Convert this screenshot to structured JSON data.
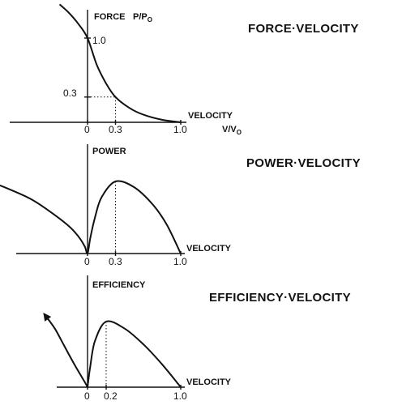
{
  "chart_data": [
    {
      "type": "line",
      "title": "FORCE·VELOCITY",
      "ylabel": "FORCE",
      "ylabel_unit": "P/P",
      "ylabel_unit_sub": "O",
      "xlabel": "VELOCITY",
      "xlabel_unit": "V/V",
      "xlabel_unit_sub": "O",
      "xlim": [
        -0.4,
        1.0
      ],
      "ylim": [
        0,
        1.4
      ],
      "x_ticks": [
        "0",
        "0.3",
        "1.0"
      ],
      "y_ticks": [
        "1.0",
        "0.3"
      ],
      "x_tick_values": [
        0,
        0.3,
        1.0
      ],
      "y_tick_values": [
        1.0,
        0.3
      ],
      "marked_point": {
        "x": 0.3,
        "y": 0.3
      },
      "series": [
        {
          "x": [
            -0.3,
            -0.2,
            -0.1,
            0.0,
            0.1,
            0.2,
            0.3,
            0.45,
            0.6,
            0.8,
            1.0
          ],
          "y": [
            1.4,
            1.3,
            1.17,
            1.0,
            0.68,
            0.46,
            0.3,
            0.17,
            0.09,
            0.03,
            0.0
          ]
        }
      ]
    },
    {
      "type": "line",
      "title": "POWER·VELOCITY",
      "ylabel": "POWER",
      "xlabel": "VELOCITY",
      "xlim": [
        -0.95,
        1.0
      ],
      "ylim": [
        0,
        1.0
      ],
      "x_ticks": [
        "0",
        "0.3",
        "1.0"
      ],
      "x_tick_values": [
        0,
        0.3,
        1.0
      ],
      "peak_x": 0.3,
      "series": [
        {
          "x": [
            -0.95,
            -0.8,
            -0.6,
            -0.4,
            -0.2,
            -0.1,
            -0.03,
            0.0,
            0.03,
            0.08,
            0.15,
            0.3,
            0.5,
            0.7,
            0.85,
            1.0
          ],
          "y": [
            0.95,
            0.87,
            0.75,
            0.58,
            0.38,
            0.24,
            0.1,
            0.0,
            0.22,
            0.5,
            0.78,
            1.0,
            0.92,
            0.68,
            0.4,
            0.0
          ]
        }
      ]
    },
    {
      "type": "line",
      "title": "EFFICIENCY·VELOCITY",
      "ylabel": "EFFICIENCY",
      "xlabel": "VELOCITY",
      "xlim": [
        -0.95,
        1.0
      ],
      "ylim": [
        0,
        1.0
      ],
      "x_ticks": [
        "0",
        "0.2",
        "1.0"
      ],
      "x_tick_values": [
        0,
        0.2,
        1.0
      ],
      "peak_x": 0.2,
      "series": [
        {
          "x": [
            -0.45,
            -0.35,
            -0.25,
            -0.15,
            -0.07,
            -0.02,
            0.0,
            0.03,
            0.08,
            0.2,
            0.4,
            0.6,
            0.8,
            1.0
          ],
          "y": [
            1.0,
            0.82,
            0.58,
            0.34,
            0.16,
            0.05,
            0.0,
            0.3,
            0.65,
            0.92,
            0.82,
            0.6,
            0.32,
            0.0
          ]
        }
      ]
    }
  ]
}
